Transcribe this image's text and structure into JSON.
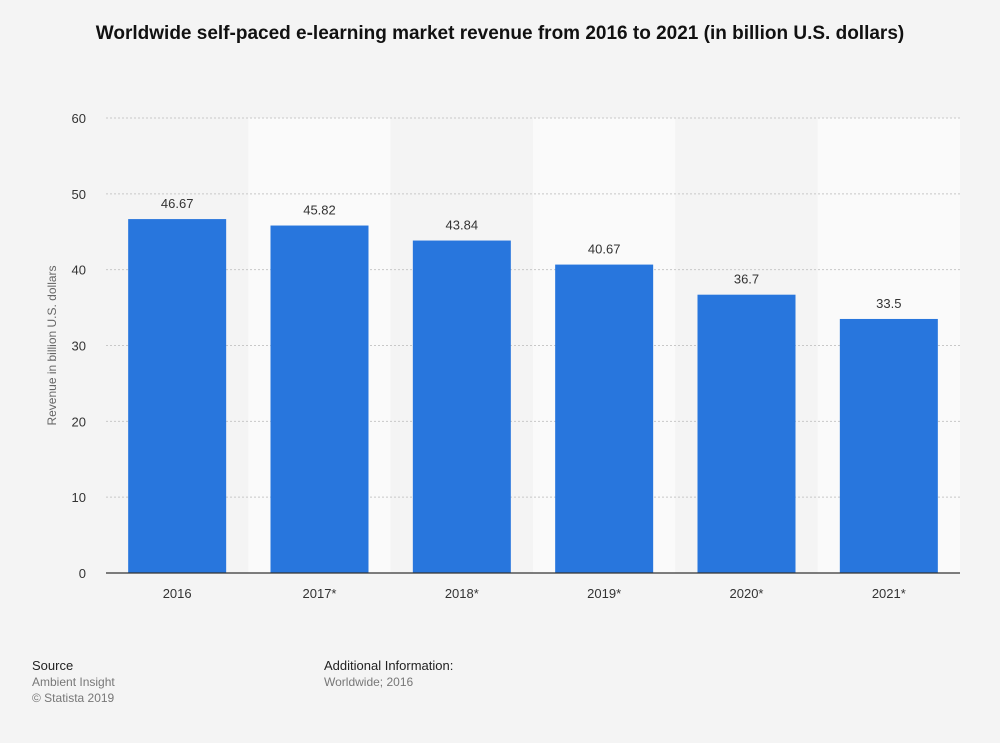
{
  "chart_data": {
    "type": "bar",
    "title": "Worldwide self-paced e-learning market revenue from 2016 to 2021 (in billion U.S. dollars)",
    "categories": [
      "2016",
      "2017*",
      "2018*",
      "2019*",
      "2020*",
      "2021*"
    ],
    "values": [
      46.67,
      45.82,
      43.84,
      40.67,
      36.7,
      33.5
    ],
    "value_labels": [
      "46.67",
      "45.82",
      "43.84",
      "40.67",
      "36.7",
      "33.5"
    ],
    "xlabel": "",
    "ylabel": "Revenue in billion U.S. dollars",
    "ylim": [
      0,
      60
    ],
    "yticks": [
      0,
      10,
      20,
      30,
      40,
      50,
      60
    ],
    "grid": true,
    "legend": "none",
    "colors": {
      "bar": "#2876dd",
      "band_light": "#fafafa",
      "band_dark": "#f4f4f4",
      "grid": "#c8c8c8",
      "axis": "#333333"
    }
  },
  "footer": {
    "source_heading": "Source",
    "source_lines": [
      "Ambient Insight",
      "© Statista 2019"
    ],
    "info_heading": "Additional Information:",
    "info_lines": [
      "Worldwide; 2016"
    ]
  }
}
